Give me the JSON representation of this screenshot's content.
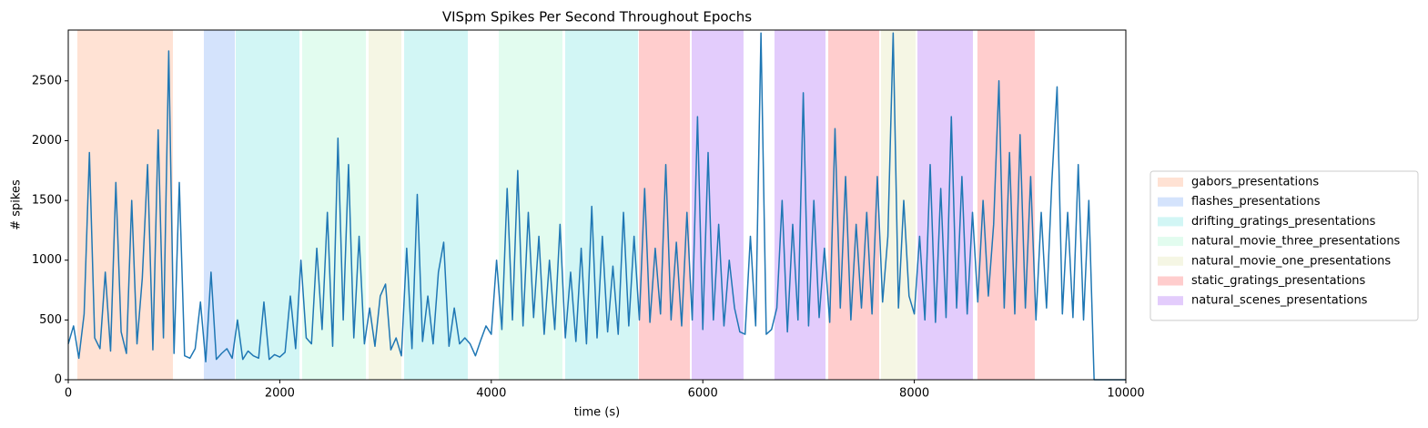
{
  "chart_data": {
    "type": "line",
    "title": "VISpm Spikes Per Second Throughout Epochs",
    "xlabel": "time (s)",
    "ylabel": "# spikes",
    "xlim": [
      0,
      10000
    ],
    "ylim": [
      0,
      2925
    ],
    "xticks": [
      0,
      2000,
      4000,
      6000,
      8000,
      10000
    ],
    "yticks": [
      0,
      500,
      1000,
      1500,
      2000,
      2500
    ],
    "grid": false,
    "legend": "center right outside",
    "epochs": [
      {
        "name": "gabors_presentations",
        "color": "#ffe2d4",
        "spans": [
          [
            86,
            990
          ]
        ]
      },
      {
        "name": "flashes_presentations",
        "color": "#d4e3fc",
        "spans": [
          [
            1282,
            1575
          ]
        ]
      },
      {
        "name": "drifting_gratings_presentations",
        "color": "#d2f6f5",
        "spans": [
          [
            1583,
            2186
          ],
          [
            3176,
            3778
          ],
          [
            4699,
            5387
          ]
        ]
      },
      {
        "name": "natural_movie_three_presentations",
        "color": "#e2fcef",
        "spans": [
          [
            2212,
            2814
          ],
          [
            4071,
            4673
          ]
        ]
      },
      {
        "name": "natural_movie_one_presentations",
        "color": "#f5f6e4",
        "spans": [
          [
            2840,
            3150
          ],
          [
            7685,
            8012
          ]
        ]
      },
      {
        "name": "static_gratings_presentations",
        "color": "#ffcdcd",
        "spans": [
          [
            5396,
            5878
          ],
          [
            7186,
            7668
          ],
          [
            8597,
            9139
          ]
        ]
      },
      {
        "name": "natural_scenes_presentations",
        "color": "#e3ccfc",
        "spans": [
          [
            5895,
            6385
          ],
          [
            6678,
            7160
          ],
          [
            8029,
            8554
          ]
        ]
      }
    ],
    "series": [
      {
        "color": "#1f77b4",
        "x": [
          0,
          50,
          100,
          150,
          200,
          250,
          300,
          350,
          400,
          450,
          500,
          550,
          600,
          650,
          700,
          750,
          800,
          850,
          900,
          950,
          1000,
          1050,
          1100,
          1150,
          1200,
          1250,
          1300,
          1350,
          1400,
          1450,
          1500,
          1550,
          1600,
          1650,
          1700,
          1750,
          1800,
          1850,
          1900,
          1950,
          2000,
          2050,
          2100,
          2150,
          2200,
          2250,
          2300,
          2350,
          2400,
          2450,
          2500,
          2550,
          2600,
          2650,
          2700,
          2750,
          2800,
          2850,
          2900,
          2950,
          3000,
          3050,
          3100,
          3150,
          3200,
          3250,
          3300,
          3350,
          3400,
          3450,
          3500,
          3550,
          3600,
          3650,
          3700,
          3750,
          3800,
          3850,
          3900,
          3950,
          4000,
          4050,
          4100,
          4150,
          4200,
          4250,
          4300,
          4350,
          4400,
          4450,
          4500,
          4550,
          4600,
          4650,
          4700,
          4750,
          4800,
          4850,
          4900,
          4950,
          5000,
          5050,
          5100,
          5150,
          5200,
          5250,
          5300,
          5350,
          5400,
          5450,
          5500,
          5550,
          5600,
          5650,
          5700,
          5750,
          5800,
          5850,
          5900,
          5950,
          6000,
          6050,
          6100,
          6150,
          6200,
          6250,
          6300,
          6350,
          6400,
          6450,
          6500,
          6550,
          6600,
          6650,
          6700,
          6750,
          6800,
          6850,
          6900,
          6950,
          7000,
          7050,
          7100,
          7150,
          7200,
          7250,
          7300,
          7350,
          7400,
          7450,
          7500,
          7550,
          7600,
          7650,
          7700,
          7750,
          7800,
          7850,
          7900,
          7950,
          8000,
          8050,
          8100,
          8150,
          8200,
          8250,
          8300,
          8350,
          8400,
          8450,
          8500,
          8550,
          8600,
          8650,
          8700,
          8750,
          8800,
          8850,
          8900,
          8950,
          9000,
          9050,
          9100,
          9150,
          9200,
          9250,
          9300,
          9350,
          9400,
          9450,
          9500,
          9550,
          9600,
          9650,
          9700,
          10000
        ],
        "values": [
          300,
          450,
          180,
          550,
          1900,
          350,
          260,
          900,
          240,
          1650,
          400,
          220,
          1500,
          300,
          850,
          1800,
          250,
          2090,
          350,
          2750,
          220,
          1650,
          200,
          180,
          260,
          650,
          150,
          900,
          170,
          220,
          260,
          180,
          500,
          170,
          240,
          200,
          180,
          650,
          170,
          210,
          190,
          230,
          700,
          260,
          1000,
          350,
          300,
          1100,
          420,
          1400,
          280,
          2020,
          500,
          1800,
          350,
          1200,
          300,
          600,
          280,
          700,
          800,
          250,
          350,
          200,
          1100,
          260,
          1550,
          320,
          700,
          300,
          900,
          1150,
          280,
          600,
          300,
          350,
          300,
          200,
          330,
          450,
          380,
          1000,
          420,
          1600,
          500,
          1750,
          450,
          1400,
          520,
          1200,
          380,
          1000,
          420,
          1300,
          350,
          900,
          320,
          1100,
          300,
          1450,
          350,
          1200,
          400,
          950,
          380,
          1400,
          450,
          1200,
          500,
          1600,
          480,
          1100,
          550,
          1800,
          500,
          1150,
          450,
          1400,
          500,
          2200,
          420,
          1900,
          500,
          1300,
          450,
          1000,
          600,
          400,
          380,
          1200,
          450,
          2900,
          380,
          420,
          600,
          1500,
          400,
          1300,
          500,
          2400,
          450,
          1500,
          520,
          1100,
          480,
          2100,
          600,
          1700,
          500,
          1300,
          600,
          1400,
          550,
          1700,
          650,
          1200,
          2900,
          600,
          1500,
          700,
          550,
          1200,
          500,
          1800,
          480,
          1600,
          520,
          2200,
          600,
          1700,
          550,
          1400,
          650,
          1500,
          700,
          1300,
          2500,
          600,
          1900,
          550,
          2050,
          600,
          1700,
          500,
          1400,
          600,
          1650,
          2450,
          550,
          1400,
          520,
          1800,
          500,
          1500,
          0,
          0
        ]
      }
    ]
  }
}
